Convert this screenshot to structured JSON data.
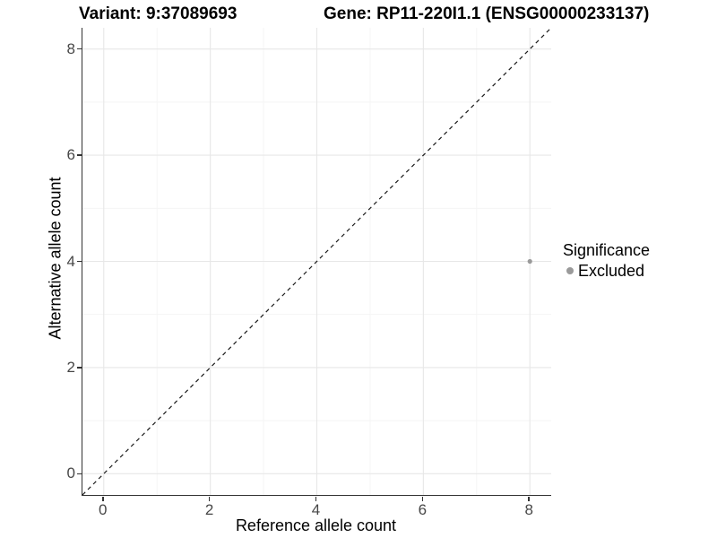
{
  "chart_data": {
    "type": "scatter",
    "titles": {
      "left": "Variant: 9:37089693",
      "right": "Gene: RP11-220I1.1 (ENSG00000233137)"
    },
    "xlabel": "Reference allele count",
    "ylabel": "Alternative allele count",
    "xlim": [
      -0.4,
      8.4
    ],
    "ylim": [
      -0.4,
      8.4
    ],
    "x_ticks": [
      0,
      2,
      4,
      6,
      8
    ],
    "y_ticks": [
      0,
      2,
      4,
      6,
      8
    ],
    "x_minor_ticks": [
      1,
      3,
      5,
      7
    ],
    "y_minor_ticks": [
      1,
      3,
      5,
      7
    ],
    "grid": true,
    "identity_line": {
      "style": "dashed",
      "x1": -0.4,
      "y1": -0.4,
      "x2": 8.4,
      "y2": 8.4,
      "color": "#1a1a1a"
    },
    "series": [
      {
        "name": "Excluded",
        "color": "#9a9a9a",
        "points": [
          {
            "x": 8,
            "y": 4
          }
        ]
      }
    ],
    "legend": {
      "title": "Significance",
      "position": "right",
      "items": [
        {
          "label": "Excluded",
          "color": "#9a9a9a"
        }
      ]
    },
    "colors": {
      "background": "#ffffff",
      "grid_major": "#e7e7e7",
      "grid_minor": "#f4f4f4",
      "axis_line": "#333333",
      "tick_label": "#474747",
      "point": "#9a9a9a"
    }
  }
}
